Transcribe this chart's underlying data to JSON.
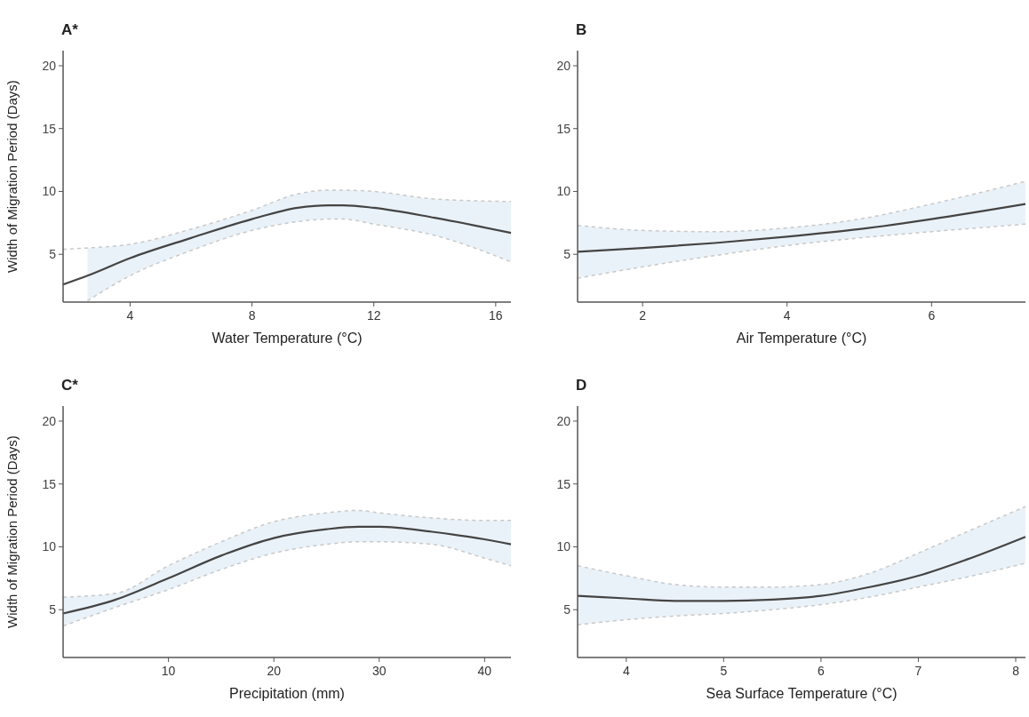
{
  "chart_data": [
    {
      "type": "line",
      "title": "A*",
      "xlabel": "Water Temperature (°C)",
      "ylabel": "Width of Migration Period (Days)",
      "xlim": [
        1.8,
        16.5
      ],
      "xticks": [
        4,
        8,
        12,
        16
      ],
      "ylim": [
        1.2,
        21.2
      ],
      "yticks": [
        5,
        10,
        15,
        20
      ],
      "grid": false,
      "series": [
        {
          "color": "#444444",
          "x": [
            1.8,
            2.6,
            4,
            6,
            8,
            9.5,
            10.5,
            11,
            12,
            14,
            16.5
          ],
          "values": [
            2.6,
            3.3,
            4.7,
            6.3,
            7.8,
            8.7,
            8.9,
            8.9,
            8.7,
            7.9,
            6.7
          ],
          "lower": [
            null,
            1.3,
            3.3,
            5.3,
            6.9,
            7.6,
            7.8,
            7.8,
            7.4,
            6.5,
            4.4
          ],
          "upper": [
            null,
            5.5,
            5.8,
            7.0,
            8.5,
            9.8,
            10.1,
            10.1,
            10.0,
            9.4,
            9.2
          ]
        },
        {
          "color": "#c9c9c9",
          "line_style": "dashed",
          "x": [
            1.8,
            2.6,
            4,
            6,
            8,
            9.5,
            10.5,
            11,
            12,
            14,
            16.5
          ],
          "values": [
            5.4,
            5.5,
            5.8,
            7.0,
            8.5,
            9.8,
            10.1,
            10.1,
            10.0,
            9.4,
            9.2
          ]
        },
        {
          "color": "#c9c9c9",
          "line_style": "dashed",
          "x": [
            2.6,
            4,
            6,
            8,
            9.5,
            10.5,
            11,
            12,
            14,
            16.5
          ],
          "values": [
            1.3,
            3.3,
            5.3,
            6.9,
            7.6,
            7.8,
            7.8,
            7.4,
            6.5,
            4.4
          ]
        }
      ]
    },
    {
      "type": "line",
      "title": "B",
      "xlabel": "Air Temperature (°C)",
      "xlim": [
        1.1,
        7.3
      ],
      "xticks": [
        2,
        4,
        6
      ],
      "ylim": [
        1.2,
        21.2
      ],
      "yticks": [
        5,
        10,
        15,
        20
      ],
      "grid": false,
      "series": [
        {
          "color": "#444444",
          "x": [
            1.1,
            2,
            3,
            4,
            5,
            6,
            7.3
          ],
          "values": [
            5.2,
            5.5,
            5.9,
            6.4,
            7.0,
            7.8,
            9.0
          ],
          "lower": [
            3.1,
            4.0,
            4.9,
            5.7,
            6.3,
            6.8,
            7.4
          ],
          "upper": [
            7.3,
            6.9,
            6.8,
            7.1,
            7.8,
            9.0,
            10.8
          ]
        },
        {
          "color": "#c9c9c9",
          "line_style": "dashed",
          "x": [
            1.1,
            2,
            3,
            4,
            5,
            6,
            7.3
          ],
          "values": [
            7.3,
            6.9,
            6.8,
            7.1,
            7.8,
            9.0,
            10.8
          ]
        },
        {
          "color": "#c9c9c9",
          "line_style": "dashed",
          "x": [
            1.1,
            2,
            3,
            4,
            5,
            6,
            7.3
          ],
          "values": [
            3.1,
            4.0,
            4.9,
            5.7,
            6.3,
            6.8,
            7.4
          ]
        }
      ]
    },
    {
      "type": "line",
      "title": "C*",
      "xlabel": "Precipitation (mm)",
      "ylabel": "Width of Migration Period (Days)",
      "xlim": [
        0,
        42.5
      ],
      "xticks": [
        10,
        20,
        30,
        40
      ],
      "ylim": [
        1.2,
        21.2
      ],
      "yticks": [
        5,
        10,
        15,
        20
      ],
      "grid": false,
      "series": [
        {
          "color": "#444444",
          "x": [
            0,
            5,
            10,
            15,
            20,
            25,
            28,
            30,
            35,
            40,
            42.5
          ],
          "values": [
            4.7,
            5.8,
            7.5,
            9.3,
            10.7,
            11.4,
            11.6,
            11.6,
            11.2,
            10.6,
            10.2
          ],
          "lower": [
            3.7,
            5.2,
            6.6,
            8.2,
            9.5,
            10.2,
            10.4,
            10.4,
            10.2,
            9.1,
            8.5
          ],
          "upper": [
            6.0,
            6.3,
            8.5,
            10.4,
            12.0,
            12.7,
            12.9,
            12.7,
            12.3,
            12.1,
            12.1
          ]
        },
        {
          "color": "#c9c9c9",
          "line_style": "dashed",
          "x": [
            0,
            5,
            10,
            15,
            20,
            25,
            28,
            30,
            35,
            40,
            42.5
          ],
          "values": [
            6.0,
            6.3,
            8.5,
            10.4,
            12.0,
            12.7,
            12.9,
            12.7,
            12.3,
            12.1,
            12.1
          ]
        },
        {
          "color": "#c9c9c9",
          "line_style": "dashed",
          "x": [
            0,
            5,
            10,
            15,
            20,
            25,
            28,
            30,
            35,
            40,
            42.5
          ],
          "values": [
            3.7,
            5.2,
            6.6,
            8.2,
            9.5,
            10.2,
            10.4,
            10.4,
            10.2,
            9.1,
            8.5
          ]
        }
      ]
    },
    {
      "type": "line",
      "title": "D",
      "xlabel": "Sea Surface Temperature (°C)",
      "xlim": [
        3.5,
        8.1
      ],
      "xticks": [
        4,
        5,
        6,
        7,
        8
      ],
      "ylim": [
        1.2,
        21.2
      ],
      "yticks": [
        5,
        10,
        15,
        20
      ],
      "grid": false,
      "series": [
        {
          "color": "#444444",
          "x": [
            3.5,
            4,
            4.5,
            5,
            5.5,
            6,
            6.5,
            7,
            7.5,
            8.1
          ],
          "values": [
            6.1,
            5.9,
            5.7,
            5.7,
            5.8,
            6.1,
            6.8,
            7.7,
            9.0,
            10.8
          ],
          "lower": [
            3.8,
            4.2,
            4.5,
            4.7,
            5.0,
            5.4,
            6.0,
            6.8,
            7.6,
            8.7
          ],
          "upper": [
            8.5,
            7.7,
            7.0,
            6.8,
            6.8,
            7.0,
            7.9,
            9.5,
            11.2,
            13.2
          ]
        },
        {
          "color": "#c9c9c9",
          "line_style": "dashed",
          "x": [
            3.5,
            4,
            4.5,
            5,
            5.5,
            6,
            6.5,
            7,
            7.5,
            8.1
          ],
          "values": [
            8.5,
            7.7,
            7.0,
            6.8,
            6.8,
            7.0,
            7.9,
            9.5,
            11.2,
            13.2
          ]
        },
        {
          "color": "#c9c9c9",
          "line_style": "dashed",
          "x": [
            3.5,
            4,
            4.5,
            5,
            5.5,
            6,
            6.5,
            7,
            7.5,
            8.1
          ],
          "values": [
            3.8,
            4.2,
            4.5,
            4.7,
            5.0,
            5.4,
            6.0,
            6.8,
            7.6,
            8.7
          ]
        }
      ]
    }
  ]
}
